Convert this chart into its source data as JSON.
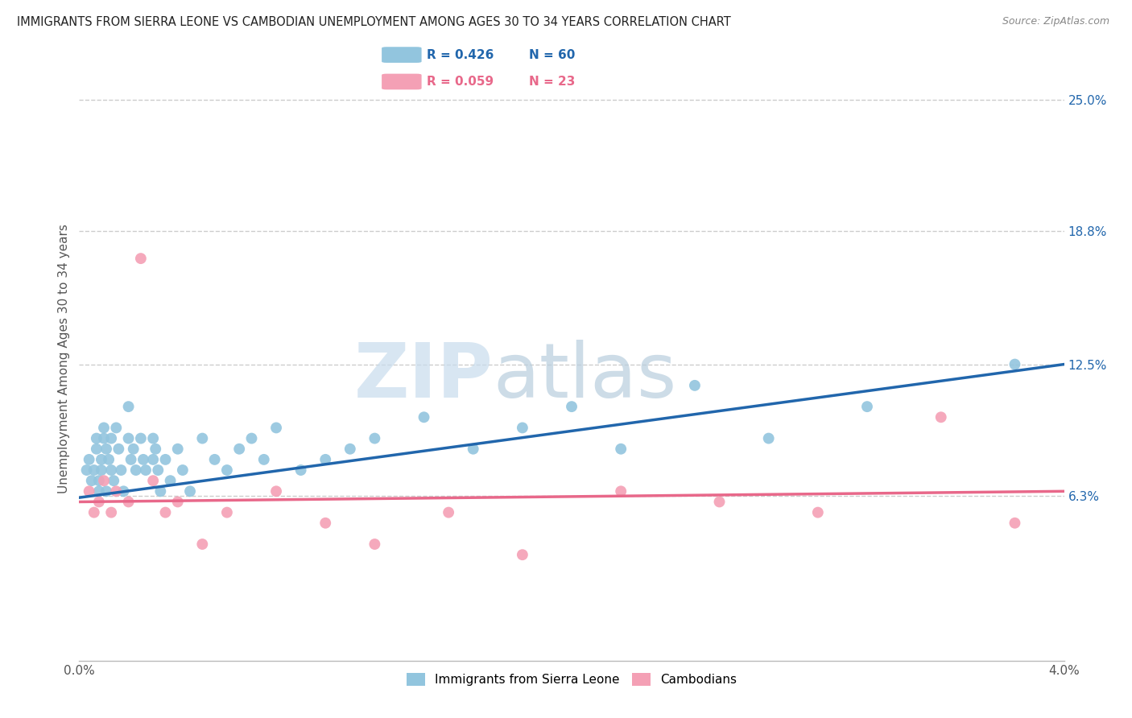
{
  "title": "IMMIGRANTS FROM SIERRA LEONE VS CAMBODIAN UNEMPLOYMENT AMONG AGES 30 TO 34 YEARS CORRELATION CHART",
  "source": "Source: ZipAtlas.com",
  "ylabel": "Unemployment Among Ages 30 to 34 years",
  "xmin": 0.0,
  "xmax": 0.04,
  "ymin": -0.015,
  "ymax": 0.27,
  "right_ytick_vals": [
    0.063,
    0.125,
    0.188,
    0.25
  ],
  "right_yticklabels": [
    "6.3%",
    "12.5%",
    "18.8%",
    "25.0%"
  ],
  "legend_blue_r": "R = 0.426",
  "legend_blue_n": "N = 60",
  "legend_pink_r": "R = 0.059",
  "legend_pink_n": "N = 23",
  "blue_color": "#92c5de",
  "blue_line_color": "#2166ac",
  "pink_color": "#f4a0b5",
  "pink_line_color": "#e8688a",
  "watermark_zip": "ZIP",
  "watermark_atlas": "atlas",
  "background_color": "#ffffff",
  "grid_color": "#cccccc",
  "sierra_leone_x": [
    0.0003,
    0.0004,
    0.0005,
    0.0006,
    0.0007,
    0.0007,
    0.0008,
    0.0008,
    0.0009,
    0.0009,
    0.001,
    0.001,
    0.0011,
    0.0011,
    0.0012,
    0.0013,
    0.0013,
    0.0014,
    0.0015,
    0.0016,
    0.0017,
    0.0018,
    0.002,
    0.002,
    0.0021,
    0.0022,
    0.0023,
    0.0025,
    0.0026,
    0.0027,
    0.003,
    0.003,
    0.0031,
    0.0032,
    0.0033,
    0.0035,
    0.0037,
    0.004,
    0.0042,
    0.0045,
    0.005,
    0.0055,
    0.006,
    0.0065,
    0.007,
    0.0075,
    0.008,
    0.009,
    0.01,
    0.011,
    0.012,
    0.014,
    0.016,
    0.018,
    0.02,
    0.022,
    0.025,
    0.028,
    0.032,
    0.038
  ],
  "sierra_leone_y": [
    0.075,
    0.08,
    0.07,
    0.075,
    0.09,
    0.085,
    0.065,
    0.07,
    0.08,
    0.075,
    0.09,
    0.095,
    0.085,
    0.065,
    0.08,
    0.075,
    0.09,
    0.07,
    0.095,
    0.085,
    0.075,
    0.065,
    0.105,
    0.09,
    0.08,
    0.085,
    0.075,
    0.09,
    0.08,
    0.075,
    0.09,
    0.08,
    0.085,
    0.075,
    0.065,
    0.08,
    0.07,
    0.085,
    0.075,
    0.065,
    0.09,
    0.08,
    0.075,
    0.085,
    0.09,
    0.08,
    0.095,
    0.075,
    0.08,
    0.085,
    0.09,
    0.1,
    0.085,
    0.095,
    0.105,
    0.085,
    0.115,
    0.09,
    0.105,
    0.125
  ],
  "cambodian_x": [
    0.0004,
    0.0006,
    0.0008,
    0.001,
    0.0013,
    0.0015,
    0.002,
    0.0025,
    0.003,
    0.0035,
    0.004,
    0.005,
    0.006,
    0.008,
    0.01,
    0.012,
    0.015,
    0.018,
    0.022,
    0.026,
    0.03,
    0.035,
    0.038
  ],
  "cambodian_y": [
    0.065,
    0.055,
    0.06,
    0.07,
    0.055,
    0.065,
    0.06,
    0.175,
    0.07,
    0.055,
    0.06,
    0.04,
    0.055,
    0.065,
    0.05,
    0.04,
    0.055,
    0.035,
    0.065,
    0.06,
    0.055,
    0.1,
    0.05
  ]
}
